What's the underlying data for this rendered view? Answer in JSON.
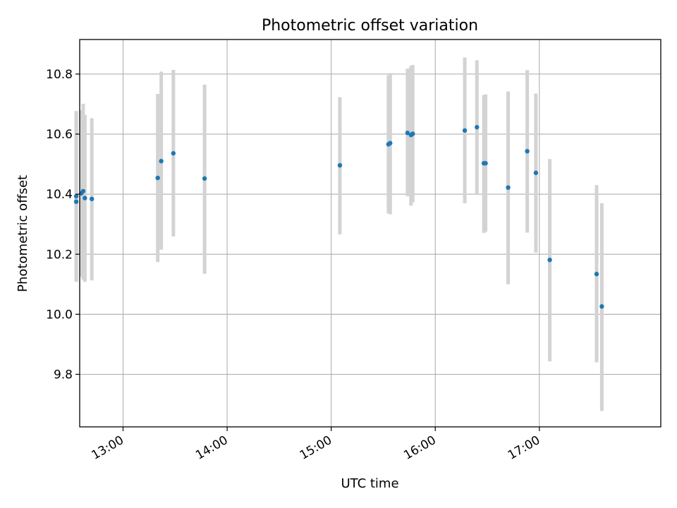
{
  "chart_data": {
    "type": "scatter",
    "title": "Photometric offset variation",
    "xlabel": "UTC time",
    "ylabel": "Photometric offset",
    "x_tick_labels": [
      "13:00",
      "14:00",
      "15:00",
      "16:00",
      "17:00"
    ],
    "x_tick_values": [
      "13:00",
      "14:00",
      "15:00",
      "16:00",
      "17:00"
    ],
    "y_tick_labels": [
      "9.8",
      "10.0",
      "10.2",
      "10.4",
      "10.6",
      "10.8"
    ],
    "y_tick_values": [
      9.8,
      10.0,
      10.2,
      10.4,
      10.6,
      10.8
    ],
    "xlim": [
      "12:35",
      "18:10"
    ],
    "ylim": [
      9.625,
      10.915
    ],
    "grid": true,
    "colors": {
      "point": "#1f77b4",
      "errorbar": "#d3d3d3",
      "grid": "#b0b0b0"
    },
    "points": [
      {
        "x": "12:33",
        "y": 10.375,
        "err_low": 10.108,
        "err_high": 10.64
      },
      {
        "x": "12:33",
        "y": 10.393,
        "err_low": 10.115,
        "err_high": 10.677
      },
      {
        "x": "12:36",
        "y": 10.403,
        "err_low": 10.125,
        "err_high": 10.68
      },
      {
        "x": "12:37",
        "y": 10.41,
        "err_low": 10.115,
        "err_high": 10.701
      },
      {
        "x": "12:38",
        "y": 10.387,
        "err_low": 10.108,
        "err_high": 10.664
      },
      {
        "x": "12:42",
        "y": 10.384,
        "err_low": 10.113,
        "err_high": 10.653
      },
      {
        "x": "13:20",
        "y": 10.454,
        "err_low": 10.174,
        "err_high": 10.734
      },
      {
        "x": "13:22",
        "y": 10.51,
        "err_low": 10.215,
        "err_high": 10.808
      },
      {
        "x": "13:29",
        "y": 10.536,
        "err_low": 10.259,
        "err_high": 10.814
      },
      {
        "x": "13:47",
        "y": 10.452,
        "err_low": 10.135,
        "err_high": 10.765
      },
      {
        "x": "15:05",
        "y": 10.496,
        "err_low": 10.266,
        "err_high": 10.723
      },
      {
        "x": "15:33",
        "y": 10.566,
        "err_low": 10.336,
        "err_high": 10.796
      },
      {
        "x": "15:34",
        "y": 10.57,
        "err_low": 10.333,
        "err_high": 10.803
      },
      {
        "x": "15:44",
        "y": 10.604,
        "err_low": 10.393,
        "err_high": 10.818
      },
      {
        "x": "15:46",
        "y": 10.597,
        "err_low": 10.362,
        "err_high": 10.827
      },
      {
        "x": "15:47",
        "y": 10.601,
        "err_low": 10.373,
        "err_high": 10.83
      },
      {
        "x": "16:17",
        "y": 10.612,
        "err_low": 10.37,
        "err_high": 10.855
      },
      {
        "x": "16:24",
        "y": 10.623,
        "err_low": 10.4,
        "err_high": 10.846
      },
      {
        "x": "16:28",
        "y": 10.503,
        "err_low": 10.271,
        "err_high": 10.73
      },
      {
        "x": "16:29",
        "y": 10.503,
        "err_low": 10.275,
        "err_high": 10.732
      },
      {
        "x": "16:42",
        "y": 10.422,
        "err_low": 10.1,
        "err_high": 10.742
      },
      {
        "x": "16:53",
        "y": 10.543,
        "err_low": 10.272,
        "err_high": 10.813
      },
      {
        "x": "16:58",
        "y": 10.471,
        "err_low": 10.205,
        "err_high": 10.735
      },
      {
        "x": "17:06",
        "y": 10.181,
        "err_low": 9.843,
        "err_high": 10.517
      },
      {
        "x": "17:33",
        "y": 10.134,
        "err_low": 9.84,
        "err_high": 10.43
      },
      {
        "x": "17:36",
        "y": 10.026,
        "err_low": 9.678,
        "err_high": 10.37
      }
    ]
  }
}
